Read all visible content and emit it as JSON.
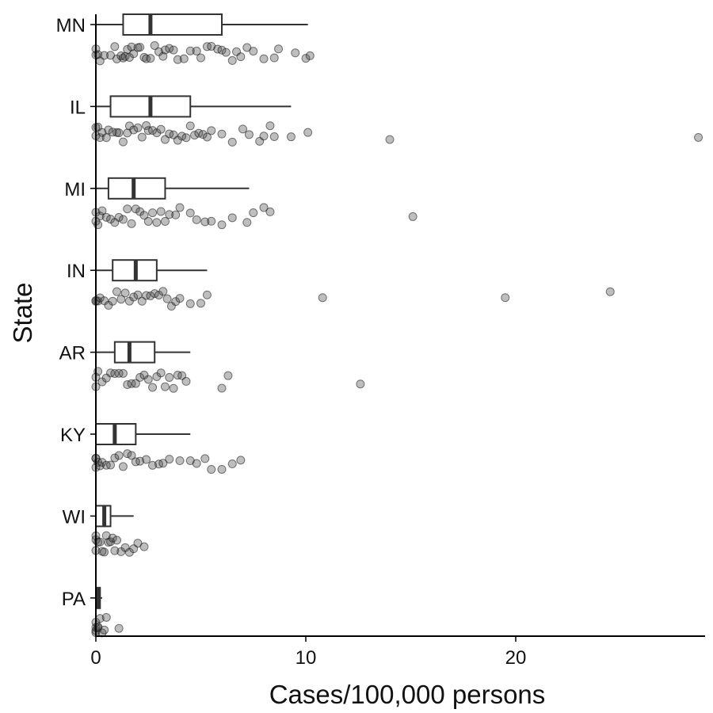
{
  "chart_data": {
    "type": "boxplot",
    "xlabel": "Cases/100,000 persons",
    "ylabel": "State",
    "xlim": [
      0,
      29
    ],
    "x_ticks": [
      "0",
      "10",
      "20"
    ],
    "x_tick_values": [
      0,
      10,
      20
    ],
    "grid": false,
    "legend": "none",
    "colors": {
      "box_stroke": "#333333",
      "point_fill": "#464646"
    },
    "states": [
      {
        "name": "MN",
        "box": {
          "min": 0,
          "q1": 1.3,
          "median": 2.6,
          "q3": 6.0,
          "max": 10.1
        },
        "points": [
          0.0,
          0.0,
          0.1,
          0.2,
          0.4,
          0.7,
          0.9,
          1.0,
          1.2,
          1.3,
          1.4,
          1.5,
          1.6,
          1.7,
          1.8,
          2.0,
          2.1,
          2.3,
          2.4,
          2.6,
          2.8,
          3.0,
          3.2,
          3.3,
          3.5,
          3.7,
          3.9,
          4.2,
          4.5,
          4.8,
          5.0,
          5.3,
          5.5,
          5.8,
          6.0,
          6.2,
          6.5,
          6.7,
          6.9,
          7.2,
          7.5,
          8.0,
          8.5,
          8.7,
          9.5,
          10.0,
          10.2
        ]
      },
      {
        "name": "IL",
        "box": {
          "min": 0,
          "q1": 0.7,
          "median": 2.6,
          "q3": 4.5,
          "max": 9.3
        },
        "points": [
          0.0,
          0.0,
          0.1,
          0.2,
          0.3,
          0.5,
          0.6,
          0.8,
          1.0,
          1.1,
          1.3,
          1.5,
          1.6,
          1.8,
          2.0,
          2.2,
          2.4,
          2.5,
          2.7,
          2.9,
          3.1,
          3.3,
          3.5,
          3.7,
          3.9,
          4.1,
          4.3,
          4.5,
          4.7,
          4.9,
          5.1,
          5.3,
          5.5,
          6.0,
          6.5,
          7.0,
          7.3,
          7.8,
          8.0,
          8.3,
          8.5,
          9.3,
          10.1,
          14.0,
          28.7
        ]
      },
      {
        "name": "MI",
        "box": {
          "min": 0,
          "q1": 0.6,
          "median": 1.8,
          "q3": 3.3,
          "max": 7.3
        },
        "points": [
          0.0,
          0.0,
          0.1,
          0.2,
          0.3,
          0.5,
          0.7,
          0.9,
          1.1,
          1.3,
          1.5,
          1.7,
          1.9,
          2.1,
          2.3,
          2.5,
          2.7,
          2.9,
          3.1,
          3.3,
          3.5,
          3.8,
          4.0,
          4.5,
          4.8,
          5.2,
          5.5,
          6.0,
          6.5,
          7.2,
          7.5,
          8.0,
          8.3,
          15.1
        ]
      },
      {
        "name": "IN",
        "box": {
          "min": 0,
          "q1": 0.8,
          "median": 1.9,
          "q3": 2.9,
          "max": 5.3
        },
        "points": [
          0.0,
          0.0,
          0.1,
          0.2,
          0.4,
          0.6,
          0.8,
          1.0,
          1.2,
          1.4,
          1.6,
          1.8,
          2.0,
          2.2,
          2.4,
          2.6,
          2.8,
          3.0,
          3.2,
          3.4,
          3.6,
          3.8,
          4.0,
          4.5,
          5.0,
          5.3,
          10.8,
          19.5,
          24.5
        ]
      },
      {
        "name": "AR",
        "box": {
          "min": 0,
          "q1": 0.9,
          "median": 1.6,
          "q3": 2.8,
          "max": 4.5
        },
        "points": [
          0.0,
          0.0,
          0.1,
          0.3,
          0.5,
          0.7,
          0.9,
          1.1,
          1.3,
          1.5,
          1.7,
          1.9,
          2.1,
          2.3,
          2.5,
          2.7,
          2.9,
          3.1,
          3.3,
          3.5,
          3.7,
          3.9,
          4.1,
          4.3,
          6.0,
          6.3,
          12.6
        ]
      },
      {
        "name": "KY",
        "box": {
          "min": 0,
          "q1": 0.0,
          "median": 0.9,
          "q3": 1.9,
          "max": 4.5
        },
        "points": [
          0.0,
          0.0,
          0.0,
          0.1,
          0.2,
          0.3,
          0.5,
          0.7,
          0.9,
          1.1,
          1.3,
          1.5,
          1.7,
          1.9,
          2.1,
          2.4,
          2.7,
          3.0,
          3.2,
          3.5,
          4.0,
          4.5,
          4.8,
          5.2,
          5.5,
          6.0,
          6.5,
          6.9
        ]
      },
      {
        "name": "WI",
        "box": {
          "min": 0,
          "q1": 0.0,
          "median": 0.4,
          "q3": 0.7,
          "max": 1.8
        },
        "points": [
          0.0,
          0.0,
          0.0,
          0.1,
          0.2,
          0.3,
          0.4,
          0.5,
          0.6,
          0.7,
          0.8,
          0.9,
          1.0,
          1.2,
          1.4,
          1.6,
          1.8,
          2.0,
          2.3
        ]
      },
      {
        "name": "PA",
        "box": {
          "min": 0,
          "q1": 0.0,
          "median": 0.1,
          "q3": 0.2,
          "max": 0.3
        },
        "points": [
          0.0,
          0.0,
          0.0,
          0.0,
          0.1,
          0.1,
          0.2,
          0.3,
          0.4,
          0.5,
          1.1
        ]
      }
    ]
  }
}
